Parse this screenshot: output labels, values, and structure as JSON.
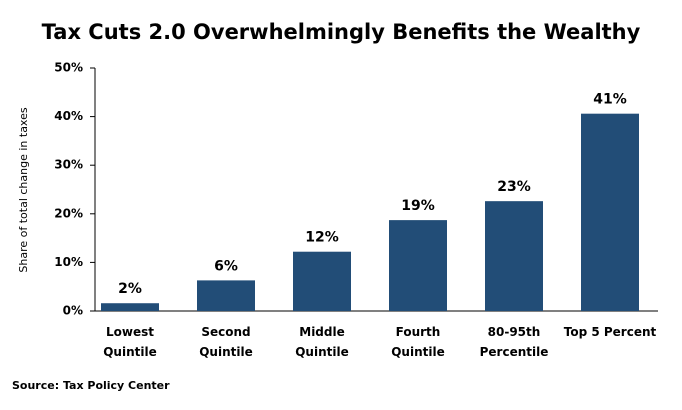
{
  "chart_data": {
    "type": "bar",
    "title": "Tax Cuts 2.0 Overwhelmingly Benefits the Wealthy",
    "y_label": "Share of total change in taxes",
    "categories": [
      [
        "Lowest",
        "Quintile"
      ],
      [
        "Second",
        "Quintile"
      ],
      [
        "Middle",
        "Quintile"
      ],
      [
        "Fourth",
        "Quintile"
      ],
      [
        "80-95th",
        "Percentile"
      ],
      [
        "Top 5 Percent"
      ]
    ],
    "values": [
      1.6,
      6.3,
      12.2,
      18.7,
      22.6,
      40.6
    ],
    "value_labels": [
      "2%",
      "6%",
      "12%",
      "19%",
      "23%",
      "41%"
    ],
    "color": "#224d77",
    "ylim": [
      0,
      50
    ],
    "yticks": [
      {
        "value": 0,
        "label": "0%"
      },
      {
        "value": 10,
        "label": "10%"
      },
      {
        "value": 20,
        "label": "20%"
      },
      {
        "value": 30,
        "label": "30%"
      },
      {
        "value": 40,
        "label": "40%"
      },
      {
        "value": 50,
        "label": "50%"
      }
    ],
    "grid": false,
    "source": "Source: Tax Policy Center"
  }
}
